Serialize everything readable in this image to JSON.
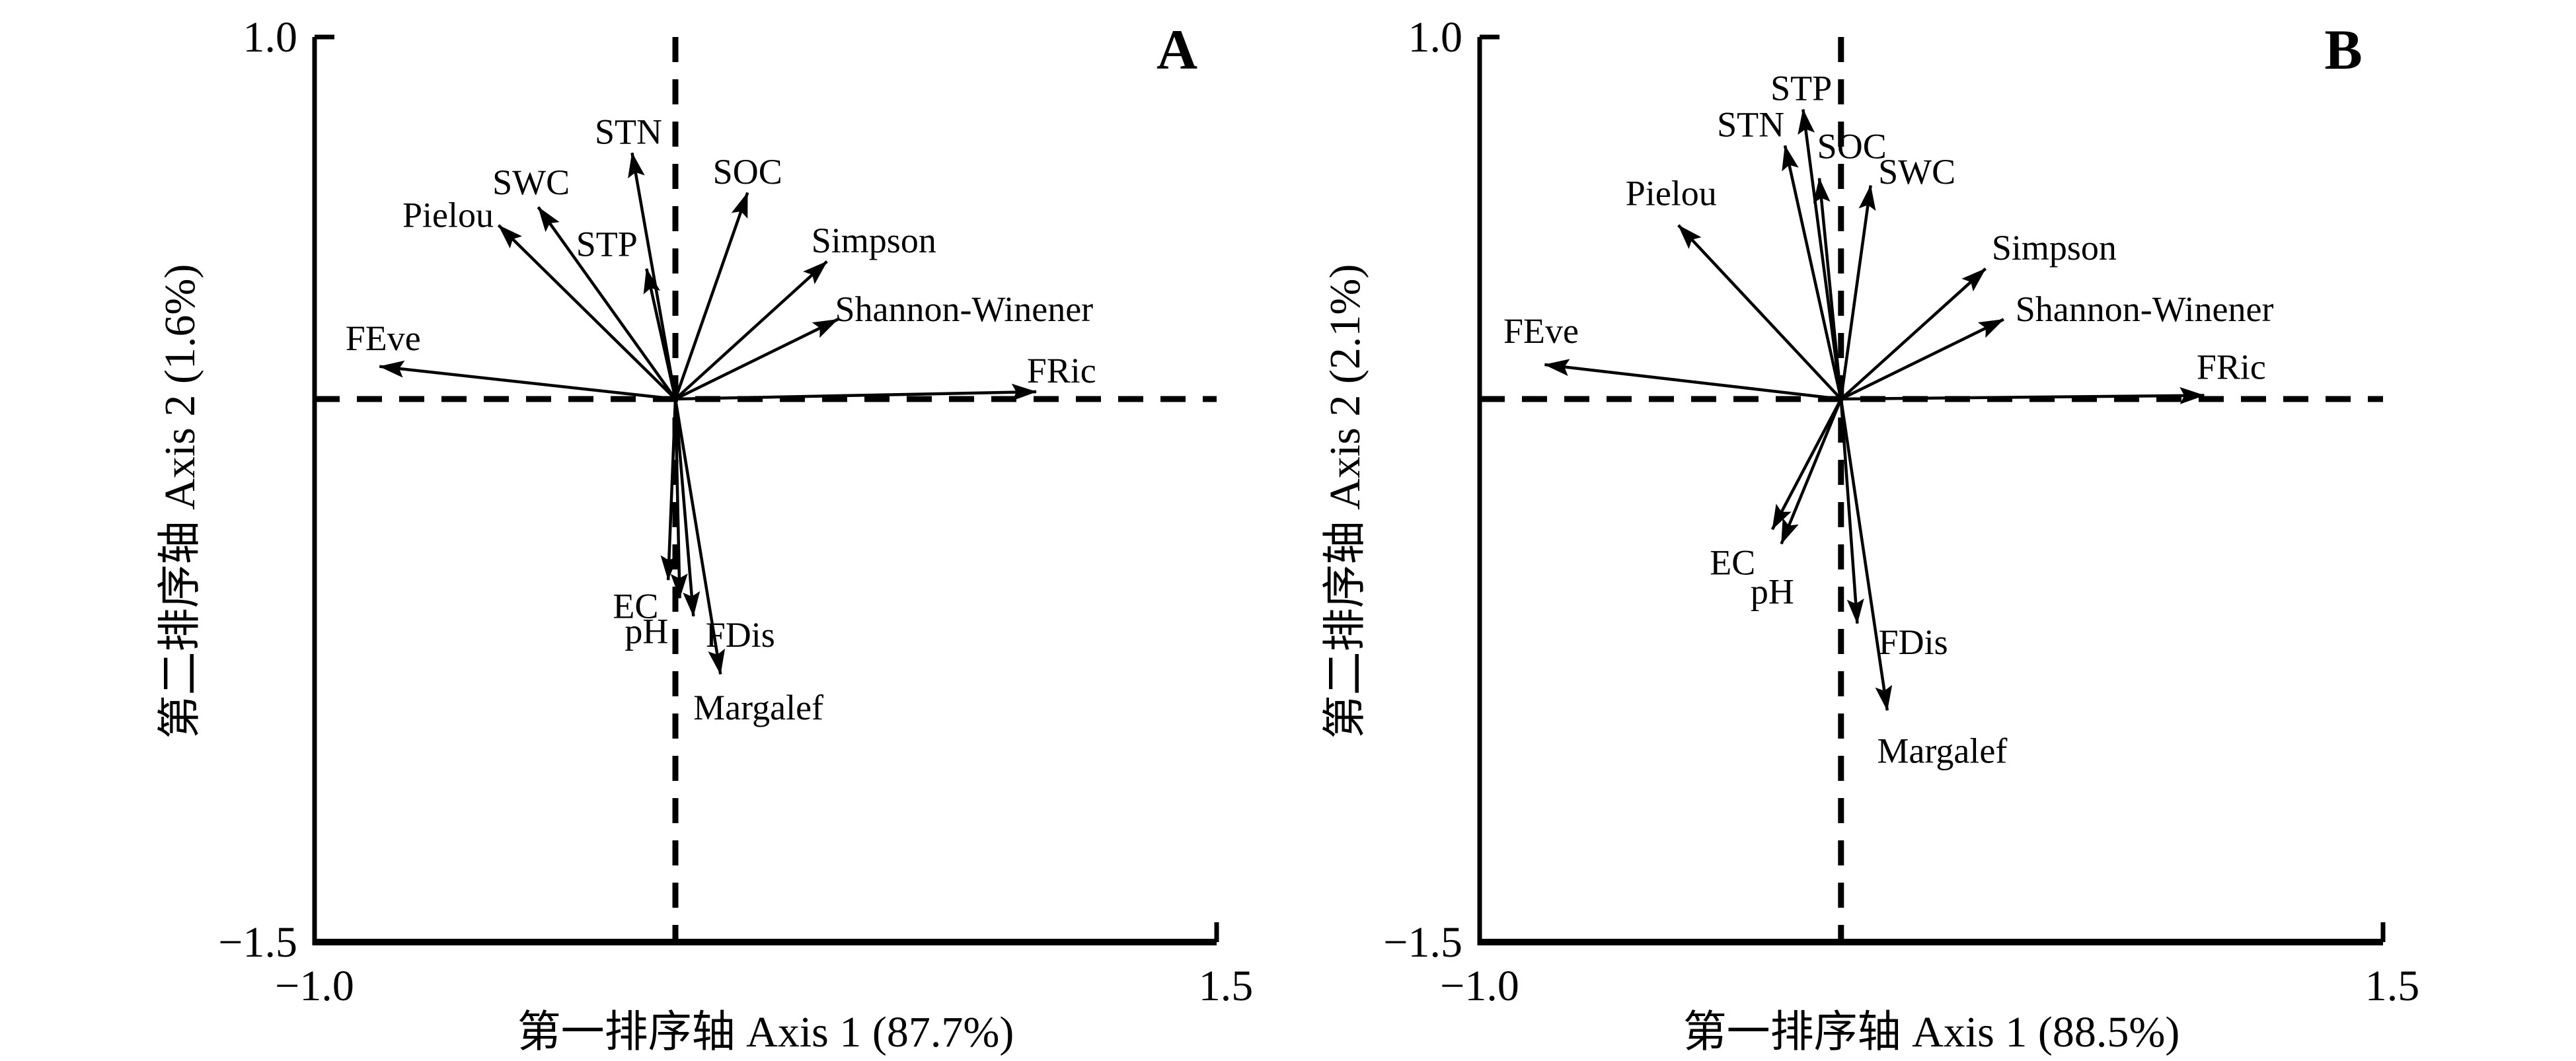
{
  "figure": {
    "background_color": "#ffffff",
    "ink_color": "#000000"
  },
  "chart_data": [
    {
      "type": "biplot-arrows",
      "panel_label": "A",
      "xlabel": "第一排序轴 Axis 1 (87.7%)",
      "ylabel": "第二排序轴 Axis 2 (1.6%)",
      "xlim": [
        -1.0,
        1.5
      ],
      "ylim": [
        -1.5,
        1.0
      ],
      "grid": "dashed zero lines through origin",
      "x_ticks": [
        {
          "v": -1.0,
          "label": "−1.0"
        },
        {
          "v": 1.5,
          "label": "1.5"
        }
      ],
      "y_ticks": [
        {
          "v": 1.0,
          "label": "1.0"
        },
        {
          "v": -1.5,
          "label": "−1.5"
        }
      ],
      "arrows": [
        {
          "label": "FEve",
          "x": -0.82,
          "y": 0.09,
          "lx": -0.81,
          "ly": 0.17
        },
        {
          "label": "Pielou",
          "x": -0.49,
          "y": 0.48,
          "lx": -0.63,
          "ly": 0.51
        },
        {
          "label": "SWC",
          "x": -0.38,
          "y": 0.53,
          "lx": -0.4,
          "ly": 0.6
        },
        {
          "label": "STN",
          "x": -0.12,
          "y": 0.68,
          "lx": -0.13,
          "ly": 0.74
        },
        {
          "label": "STP",
          "x": -0.08,
          "y": 0.36,
          "lx": -0.19,
          "ly": 0.43
        },
        {
          "label": "SOC",
          "x": 0.2,
          "y": 0.57,
          "lx": 0.2,
          "ly": 0.63
        },
        {
          "label": "Simpson",
          "x": 0.42,
          "y": 0.38,
          "lx": 0.55,
          "ly": 0.44
        },
        {
          "label": "Shannon-Winener",
          "x": 0.45,
          "y": 0.22,
          "lx": 0.8,
          "ly": 0.25
        },
        {
          "label": "FRic",
          "x": 1.0,
          "y": 0.02,
          "lx": 1.07,
          "ly": 0.08
        },
        {
          "label": "EC",
          "x": -0.02,
          "y": -0.5,
          "lx": -0.11,
          "ly": -0.57
        },
        {
          "label": "pH",
          "x": 0.012,
          "y": -0.55,
          "lx": -0.08,
          "ly": -0.64
        },
        {
          "label": "FDis",
          "x": 0.05,
          "y": -0.6,
          "lx": 0.18,
          "ly": -0.65
        },
        {
          "label": "Margalef",
          "x": 0.125,
          "y": -0.76,
          "lx": 0.23,
          "ly": -0.85
        }
      ]
    },
    {
      "type": "biplot-arrows",
      "panel_label": "B",
      "xlabel": "第一排序轴 Axis 1 (88.5%)",
      "ylabel": "第二排序轴 Axis 2 (2.1%)",
      "xlim": [
        -1.0,
        1.5
      ],
      "ylim": [
        -1.5,
        1.0
      ],
      "grid": "dashed zero lines through origin",
      "x_ticks": [
        {
          "v": -1.0,
          "label": "−1.0"
        },
        {
          "v": 1.5,
          "label": "1.5"
        }
      ],
      "y_ticks": [
        {
          "v": 1.0,
          "label": "1.0"
        },
        {
          "v": -1.5,
          "label": "−1.5"
        }
      ],
      "arrows": [
        {
          "label": "FEve",
          "x": -0.82,
          "y": 0.095,
          "lx": -0.83,
          "ly": 0.19
        },
        {
          "label": "Pielou",
          "x": -0.45,
          "y": 0.48,
          "lx": -0.47,
          "ly": 0.57
        },
        {
          "label": "STN",
          "x": -0.155,
          "y": 0.7,
          "lx": -0.25,
          "ly": 0.76
        },
        {
          "label": "STP",
          "x": -0.105,
          "y": 0.8,
          "lx": -0.11,
          "ly": 0.86
        },
        {
          "label": "SOC",
          "x": -0.06,
          "y": 0.61,
          "lx": 0.03,
          "ly": 0.7
        },
        {
          "label": "SWC",
          "x": 0.082,
          "y": 0.59,
          "lx": 0.21,
          "ly": 0.63
        },
        {
          "label": "Simpson",
          "x": 0.4,
          "y": 0.36,
          "lx": 0.59,
          "ly": 0.42
        },
        {
          "label": "Shannon-Winener",
          "x": 0.45,
          "y": 0.22,
          "lx": 0.84,
          "ly": 0.25
        },
        {
          "label": "FRic",
          "x": 1.005,
          "y": 0.01,
          "lx": 1.08,
          "ly": 0.09
        },
        {
          "label": "EC",
          "x": -0.19,
          "y": -0.36,
          "lx": -0.3,
          "ly": -0.45
        },
        {
          "label": "pH",
          "x": -0.165,
          "y": -0.4,
          "lx": -0.19,
          "ly": -0.53
        },
        {
          "label": "FDis",
          "x": 0.045,
          "y": -0.62,
          "lx": 0.2,
          "ly": -0.67
        },
        {
          "label": "Margalef",
          "x": 0.128,
          "y": -0.86,
          "lx": 0.28,
          "ly": -0.97
        }
      ]
    }
  ]
}
